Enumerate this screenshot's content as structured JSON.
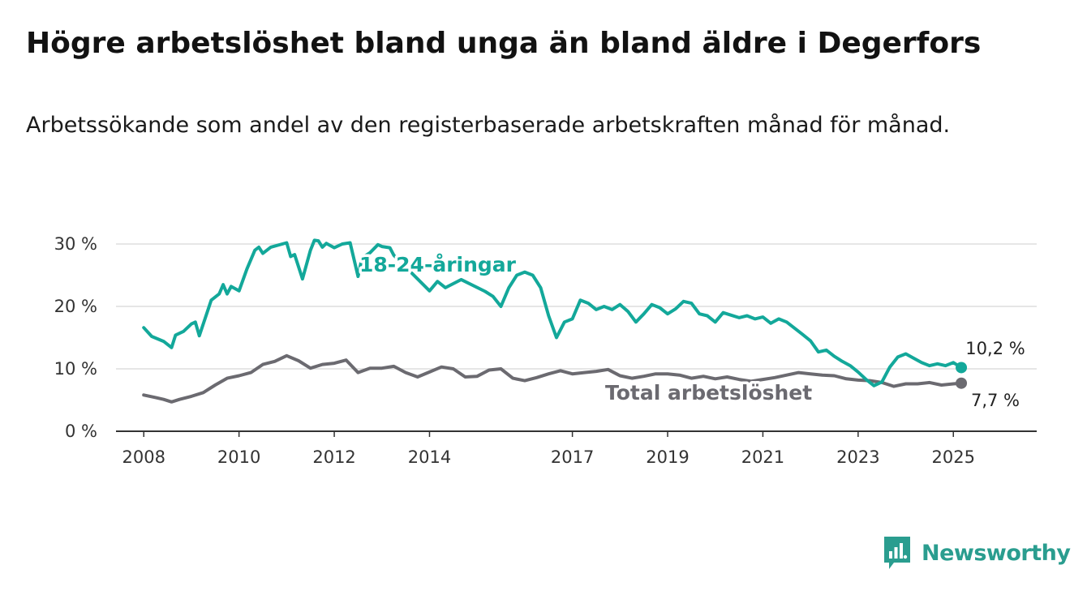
{
  "title": "Högre arbetslöshet bland unga än bland äldre i Degerfors",
  "subtitle": "Arbetssökande som andel av den registerbaserade arbetskraften månad för månad.",
  "brand": "Newsworthy",
  "colors": {
    "youth": "#13a89a",
    "total": "#6b6a70",
    "grid": "#dddddd",
    "axis": "#333333",
    "brand": "#2a9d8f"
  },
  "chart_data": {
    "type": "line",
    "x_ticks": [
      "2008",
      "2010",
      "2012",
      "2014",
      "2017",
      "2019",
      "2021",
      "2023",
      "2025"
    ],
    "y_ticks": [
      "0 %",
      "10 %",
      "20 %",
      "30 %"
    ],
    "ylim": [
      0,
      30
    ],
    "xlim": [
      "2007-06",
      "2026-10"
    ],
    "grid": true,
    "series": [
      {
        "name": "18-24-åringar",
        "color": "#13a89a",
        "end_label": "10,2 %",
        "points": [
          [
            "2008-01",
            16.6
          ],
          [
            "2008-03",
            15.2
          ],
          [
            "2008-06",
            14.4
          ],
          [
            "2008-08",
            13.4
          ],
          [
            "2008-09",
            15.4
          ],
          [
            "2008-11",
            16.0
          ],
          [
            "2009-01",
            17.2
          ],
          [
            "2009-02",
            17.5
          ],
          [
            "2009-03",
            15.3
          ],
          [
            "2009-06",
            21.0
          ],
          [
            "2009-08",
            22.0
          ],
          [
            "2009-09",
            23.5
          ],
          [
            "2009-10",
            22.0
          ],
          [
            "2009-11",
            23.2
          ],
          [
            "2010-01",
            22.5
          ],
          [
            "2010-03",
            26.0
          ],
          [
            "2010-05",
            29.0
          ],
          [
            "2010-06",
            29.5
          ],
          [
            "2010-07",
            28.5
          ],
          [
            "2010-09",
            29.5
          ],
          [
            "2011-01",
            30.2
          ],
          [
            "2011-02",
            28.0
          ],
          [
            "2011-03",
            28.3
          ],
          [
            "2011-05",
            24.4
          ],
          [
            "2011-07",
            29.0
          ],
          [
            "2011-08",
            30.6
          ],
          [
            "2011-09",
            30.5
          ],
          [
            "2011-10",
            29.5
          ],
          [
            "2011-11",
            30.1
          ],
          [
            "2012-01",
            29.4
          ],
          [
            "2012-03",
            30.0
          ],
          [
            "2012-05",
            30.2
          ],
          [
            "2012-07",
            24.8
          ],
          [
            "2012-08",
            27.8
          ],
          [
            "2012-10",
            28.6
          ],
          [
            "2012-12",
            29.9
          ],
          [
            "2013-01",
            29.6
          ],
          [
            "2013-03",
            29.4
          ],
          [
            "2013-04",
            28.2
          ],
          [
            "2014-01",
            22.5
          ],
          [
            "2014-03",
            24.0
          ],
          [
            "2014-05",
            23.0
          ],
          [
            "2014-09",
            24.3
          ],
          [
            "2015-03",
            22.4
          ],
          [
            "2015-05",
            21.6
          ],
          [
            "2015-07",
            20.0
          ],
          [
            "2015-09",
            23.0
          ],
          [
            "2015-11",
            25.0
          ],
          [
            "2016-01",
            25.5
          ],
          [
            "2016-03",
            25.0
          ],
          [
            "2016-05",
            23.0
          ],
          [
            "2016-07",
            18.5
          ],
          [
            "2016-09",
            15.0
          ],
          [
            "2016-11",
            17.5
          ],
          [
            "2017-01",
            18.0
          ],
          [
            "2017-03",
            21.0
          ],
          [
            "2017-05",
            20.5
          ],
          [
            "2017-07",
            19.5
          ],
          [
            "2017-09",
            20.0
          ],
          [
            "2017-11",
            19.5
          ],
          [
            "2018-01",
            20.3
          ],
          [
            "2018-03",
            19.2
          ],
          [
            "2018-05",
            17.5
          ],
          [
            "2018-07",
            18.8
          ],
          [
            "2018-09",
            20.3
          ],
          [
            "2018-11",
            19.8
          ],
          [
            "2019-01",
            18.8
          ],
          [
            "2019-03",
            19.6
          ],
          [
            "2019-05",
            20.8
          ],
          [
            "2019-07",
            20.5
          ],
          [
            "2019-09",
            18.8
          ],
          [
            "2019-11",
            18.5
          ],
          [
            "2020-01",
            17.5
          ],
          [
            "2020-03",
            19.0
          ],
          [
            "2020-05",
            18.6
          ],
          [
            "2020-07",
            18.2
          ],
          [
            "2020-09",
            18.5
          ],
          [
            "2020-11",
            18.0
          ],
          [
            "2021-01",
            18.3
          ],
          [
            "2021-03",
            17.3
          ],
          [
            "2021-05",
            18.0
          ],
          [
            "2021-07",
            17.5
          ],
          [
            "2021-09",
            16.5
          ],
          [
            "2021-11",
            15.5
          ],
          [
            "2022-01",
            14.5
          ],
          [
            "2022-03",
            12.7
          ],
          [
            "2022-05",
            13.0
          ],
          [
            "2022-07",
            12.0
          ],
          [
            "2022-09",
            11.2
          ],
          [
            "2022-11",
            10.5
          ],
          [
            "2023-01",
            9.5
          ],
          [
            "2023-03",
            8.3
          ],
          [
            "2023-05",
            7.3
          ],
          [
            "2023-07",
            7.9
          ],
          [
            "2023-09",
            10.3
          ],
          [
            "2023-11",
            11.9
          ],
          [
            "2024-01",
            12.4
          ],
          [
            "2024-03",
            11.7
          ],
          [
            "2024-05",
            11.0
          ],
          [
            "2024-07",
            10.5
          ],
          [
            "2024-09",
            10.8
          ],
          [
            "2024-11",
            10.5
          ],
          [
            "2025-01",
            11.0
          ],
          [
            "2025-03",
            10.2
          ]
        ]
      },
      {
        "name": "Total arbetslöshet",
        "color": "#6b6a70",
        "end_label": "7,7 %",
        "points": [
          [
            "2008-01",
            5.8
          ],
          [
            "2008-04",
            5.4
          ],
          [
            "2008-06",
            5.1
          ],
          [
            "2008-08",
            4.7
          ],
          [
            "2008-10",
            5.1
          ],
          [
            "2009-01",
            5.6
          ],
          [
            "2009-04",
            6.2
          ],
          [
            "2009-07",
            7.4
          ],
          [
            "2009-10",
            8.5
          ],
          [
            "2010-01",
            8.9
          ],
          [
            "2010-04",
            9.4
          ],
          [
            "2010-07",
            10.7
          ],
          [
            "2010-10",
            11.2
          ],
          [
            "2011-01",
            12.1
          ],
          [
            "2011-04",
            11.3
          ],
          [
            "2011-07",
            10.1
          ],
          [
            "2011-10",
            10.7
          ],
          [
            "2012-01",
            10.9
          ],
          [
            "2012-04",
            11.4
          ],
          [
            "2012-07",
            9.4
          ],
          [
            "2012-10",
            10.1
          ],
          [
            "2013-01",
            10.1
          ],
          [
            "2013-04",
            10.4
          ],
          [
            "2013-07",
            9.4
          ],
          [
            "2013-10",
            8.7
          ],
          [
            "2014-01",
            9.5
          ],
          [
            "2014-04",
            10.3
          ],
          [
            "2014-07",
            10.0
          ],
          [
            "2014-10",
            8.7
          ],
          [
            "2015-01",
            8.8
          ],
          [
            "2015-04",
            9.8
          ],
          [
            "2015-07",
            10.0
          ],
          [
            "2015-10",
            8.5
          ],
          [
            "2016-01",
            8.1
          ],
          [
            "2016-04",
            8.6
          ],
          [
            "2016-07",
            9.2
          ],
          [
            "2016-10",
            9.7
          ],
          [
            "2017-01",
            9.2
          ],
          [
            "2017-04",
            9.4
          ],
          [
            "2017-07",
            9.6
          ],
          [
            "2017-10",
            9.9
          ],
          [
            "2018-01",
            8.9
          ],
          [
            "2018-04",
            8.5
          ],
          [
            "2018-07",
            8.8
          ],
          [
            "2018-10",
            9.2
          ],
          [
            "2019-01",
            9.2
          ],
          [
            "2019-04",
            9.0
          ],
          [
            "2019-07",
            8.5
          ],
          [
            "2019-10",
            8.8
          ],
          [
            "2020-01",
            8.4
          ],
          [
            "2020-04",
            8.7
          ],
          [
            "2020-07",
            8.3
          ],
          [
            "2020-10",
            8.0
          ],
          [
            "2021-01",
            8.3
          ],
          [
            "2021-04",
            8.6
          ],
          [
            "2021-07",
            9.0
          ],
          [
            "2021-10",
            9.4
          ],
          [
            "2022-01",
            9.2
          ],
          [
            "2022-04",
            9.0
          ],
          [
            "2022-07",
            8.9
          ],
          [
            "2022-10",
            8.4
          ],
          [
            "2023-01",
            8.2
          ],
          [
            "2023-04",
            8.1
          ],
          [
            "2023-07",
            7.8
          ],
          [
            "2023-10",
            7.2
          ],
          [
            "2024-01",
            7.6
          ],
          [
            "2024-04",
            7.6
          ],
          [
            "2024-07",
            7.8
          ],
          [
            "2024-10",
            7.4
          ],
          [
            "2025-01",
            7.6
          ],
          [
            "2025-03",
            7.7
          ]
        ]
      }
    ]
  }
}
